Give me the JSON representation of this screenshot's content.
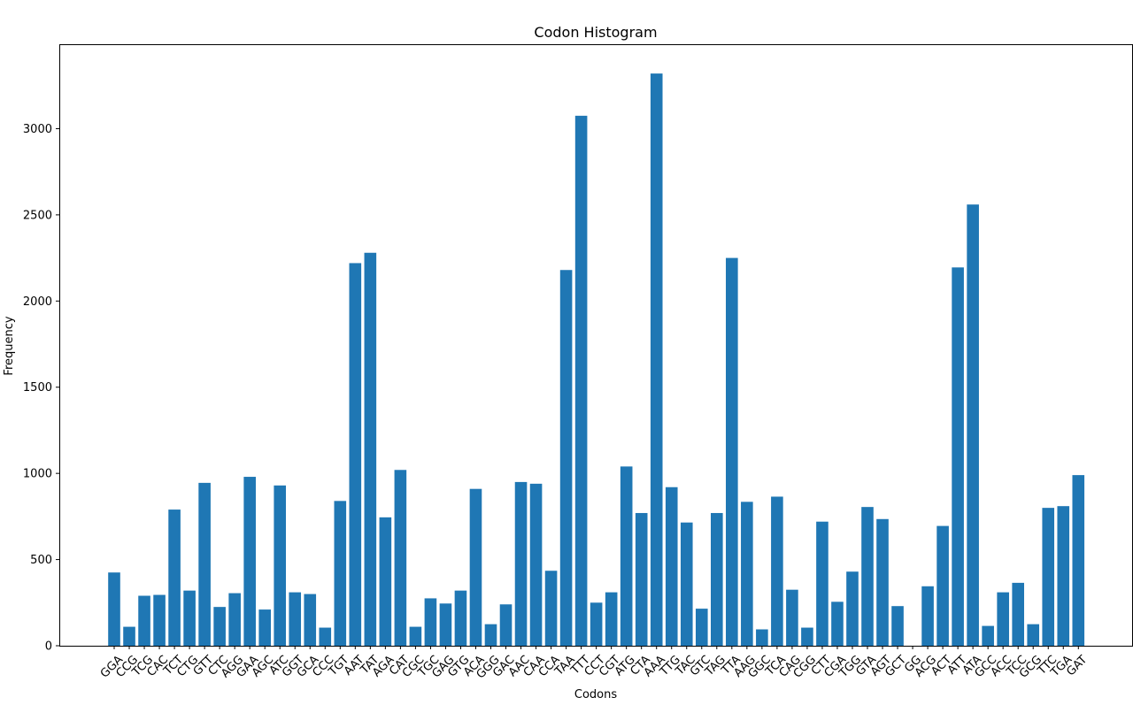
{
  "chart_data": {
    "type": "bar",
    "title": "Codon Histogram",
    "xlabel": "Codons",
    "ylabel": "Frequency",
    "ylim": [
      0,
      3490
    ],
    "yticks": [
      0,
      500,
      1000,
      1500,
      2000,
      2500,
      3000
    ],
    "grid": false,
    "bar_color": "#1f77b4",
    "categories": [
      "GGA",
      "CCG",
      "TCG",
      "CAC",
      "TCT",
      "CTG",
      "GTT",
      "CTC",
      "AGG",
      "GAA",
      "AGC",
      "ATC",
      "GGT",
      "GCA",
      "CCC",
      "TGT",
      "AAT",
      "TAT",
      "AGA",
      "CAT",
      "CGC",
      "TGC",
      "GAG",
      "GTG",
      "ACA",
      "GGG",
      "GAC",
      "AAC",
      "CAA",
      "CCA",
      "TAA",
      "TTT",
      "CCT",
      "CGT",
      "ATG",
      "CTA",
      "AAA",
      "TTG",
      "TAC",
      "GTC",
      "TAG",
      "TTA",
      "AAG",
      "GGC",
      "TCA",
      "CAG",
      "CGG",
      "CTT",
      "CGA",
      "TGG",
      "GTA",
      "AGT",
      "GCT",
      "GG",
      "ACG",
      "ACT",
      "ATT",
      "ATA",
      "GCC",
      "ACC",
      "TCC",
      "GCG",
      "TTC",
      "TGA",
      "GAT"
    ],
    "values": [
      425,
      110,
      290,
      295,
      790,
      320,
      945,
      225,
      305,
      980,
      210,
      930,
      310,
      300,
      105,
      840,
      2220,
      2280,
      745,
      1020,
      110,
      275,
      245,
      320,
      910,
      125,
      240,
      950,
      940,
      435,
      2180,
      3075,
      250,
      310,
      1040,
      770,
      3320,
      920,
      715,
      215,
      770,
      2250,
      835,
      95,
      865,
      325,
      105,
      720,
      255,
      430,
      805,
      735,
      230,
      0,
      345,
      695,
      2195,
      2560,
      115,
      310,
      365,
      125,
      800,
      810,
      990
    ]
  }
}
